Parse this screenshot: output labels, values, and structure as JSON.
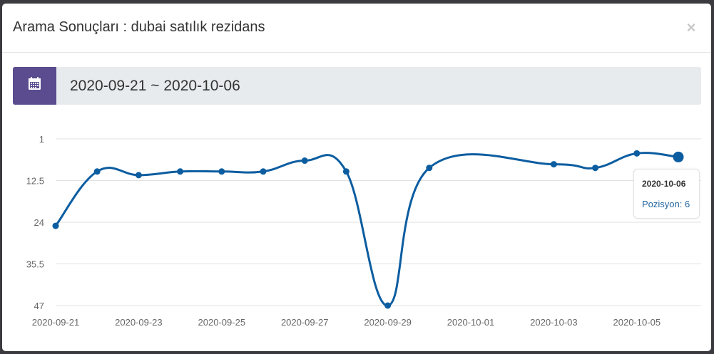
{
  "modal": {
    "title": "Arama Sonuçları : dubai satılık rezidans",
    "close_glyph": "×"
  },
  "date_range": {
    "icon": "calendar-icon",
    "value": "2020-09-21 ~ 2020-10-06"
  },
  "colors": {
    "accent": "#5a4c8e",
    "line": "#0c5da0",
    "grid": "#e0e0e0",
    "tick_text": "#666666"
  },
  "tooltip": {
    "date": "2020-10-06",
    "label": "Pozisyon",
    "value": "6"
  },
  "chart_data": {
    "type": "line",
    "x_dates": [
      "2020-09-21",
      "2020-09-22",
      "2020-09-23",
      "2020-09-24",
      "2020-09-25",
      "2020-09-26",
      "2020-09-27",
      "2020-09-28",
      "2020-09-29",
      "2020-09-30",
      "2020-10-01",
      "2020-10-02",
      "2020-10-03",
      "2020-10-04",
      "2020-10-05",
      "2020-10-06"
    ],
    "x_tick_labels": [
      "2020-09-21",
      "2020-09-23",
      "2020-09-25",
      "2020-09-27",
      "2020-09-29",
      "2020-10-01",
      "2020-10-03",
      "2020-10-05"
    ],
    "series": [
      {
        "values": [
          25,
          10,
          11,
          10,
          10,
          10,
          7,
          10,
          47,
          9,
          null,
          null,
          8,
          9,
          5,
          6
        ]
      }
    ],
    "y_ticks": [
      1,
      12.5,
      24,
      35.5,
      47
    ],
    "ylim": [
      1,
      47
    ],
    "y_reversed": true,
    "grid": "horizontal",
    "highlighted_index": 15
  }
}
